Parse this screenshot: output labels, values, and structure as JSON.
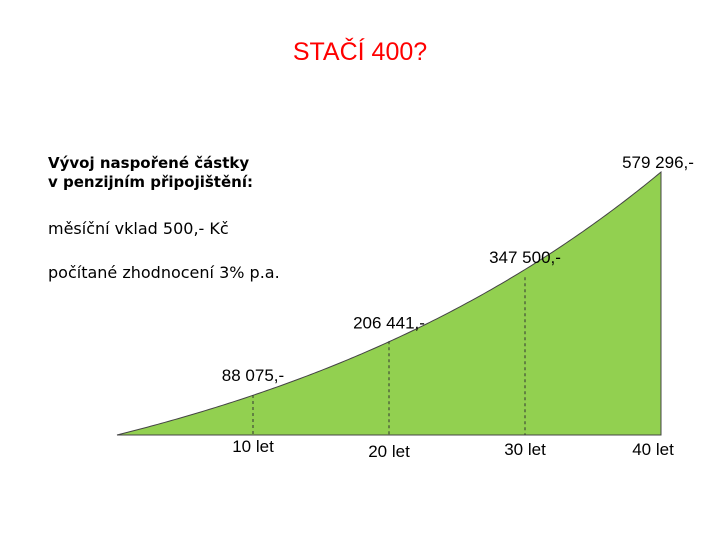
{
  "title": "STAČÍ 400?",
  "info": {
    "heading_line1": "Vývoj naspořené částky",
    "heading_line2": "v penzijním připojištění:",
    "deposit": "měsíční vklad 500,- Kč",
    "rate": "počítané zhodnocení 3% p.a."
  },
  "colors": {
    "title": "#ff0000",
    "fill": "#92d050",
    "outline": "#444444"
  },
  "chart_data": {
    "type": "area",
    "title": "STAČÍ 400?",
    "xlim": [
      0,
      40
    ],
    "ylim": [
      0,
      579296
    ],
    "curve": {
      "monthly_deposit": 500,
      "annual_rate": 0.03
    },
    "points": [
      {
        "x": 10,
        "y": 88075,
        "value_label": "88 075,-",
        "time_label": "10 let"
      },
      {
        "x": 20,
        "y": 206441,
        "value_label": "206 441,-",
        "time_label": "20 let"
      },
      {
        "x": 30,
        "y": 347500,
        "value_label": "347 500,-",
        "time_label": "30 let"
      },
      {
        "x": 40,
        "y": 579296,
        "value_label": "579 296,-",
        "time_label": "40 let"
      }
    ]
  }
}
